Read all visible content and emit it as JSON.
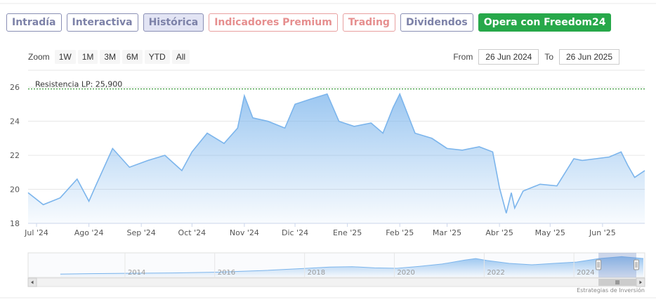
{
  "tabs": [
    {
      "label": "Intradía"
    },
    {
      "label": "Interactiva"
    },
    {
      "label": "Histórica"
    },
    {
      "label": "Indicadores Premium"
    },
    {
      "label": "Trading"
    },
    {
      "label": "Dividendos"
    },
    {
      "label": "Opera con Freedom24"
    }
  ],
  "zoom": {
    "label": "Zoom",
    "options": [
      "1W",
      "1M",
      "3M",
      "6M",
      "YTD",
      "All"
    ]
  },
  "range": {
    "from_label": "From",
    "from_value": "26 Jun 2024",
    "to_label": "To",
    "to_value": "26 Jun 2025"
  },
  "colors": {
    "line": "#7cb5ec",
    "resistance": "#3a9a3a",
    "cta": "#27a84a"
  },
  "credit": "Estrategias de Inversión",
  "chart_data": [
    {
      "type": "area",
      "annotation": "Resistencia LP: 25,900",
      "resistance": 25.9,
      "ylim": [
        18,
        27
      ],
      "y_ticks": [
        18,
        20,
        22,
        24,
        26
      ],
      "x_tick_labels": [
        "Jul '24",
        "Ago '24",
        "Sep '24",
        "Oct '24",
        "Nov '24",
        "Dic '24",
        "Ene '25",
        "Feb '25",
        "Mar '25",
        "Abr '25",
        "May '25",
        "Jun '25"
      ],
      "x_tick_dates": [
        "2024-07-01",
        "2024-08-01",
        "2024-09-01",
        "2024-10-01",
        "2024-11-01",
        "2024-12-01",
        "2025-01-01",
        "2025-02-01",
        "2025-03-01",
        "2025-04-01",
        "2025-05-01",
        "2025-06-01"
      ],
      "x_range": [
        "2024-06-26",
        "2025-06-26"
      ],
      "series": [
        {
          "x": [
            "2024-06-26",
            "2024-07-05",
            "2024-07-15",
            "2024-07-25",
            "2024-08-01",
            "2024-08-05",
            "2024-08-15",
            "2024-08-25",
            "2024-09-05",
            "2024-09-15",
            "2024-09-25",
            "2024-10-01",
            "2024-10-10",
            "2024-10-20",
            "2024-10-28",
            "2024-11-01",
            "2024-11-06",
            "2024-11-15",
            "2024-11-25",
            "2024-12-01",
            "2024-12-10",
            "2024-12-20",
            "2024-12-27",
            "2025-01-05",
            "2025-01-15",
            "2025-01-22",
            "2025-01-28",
            "2025-02-01",
            "2025-02-10",
            "2025-02-20",
            "2025-03-01",
            "2025-03-10",
            "2025-03-20",
            "2025-03-28",
            "2025-04-01",
            "2025-04-05",
            "2025-04-08",
            "2025-04-10",
            "2025-04-15",
            "2025-04-25",
            "2025-05-05",
            "2025-05-15",
            "2025-05-20",
            "2025-05-28",
            "2025-06-05",
            "2025-06-12",
            "2025-06-16",
            "2025-06-20",
            "2025-06-26"
          ],
          "values": [
            19.8,
            19.1,
            19.5,
            20.6,
            19.3,
            20.2,
            22.4,
            21.3,
            21.7,
            22.0,
            21.1,
            22.2,
            23.3,
            22.7,
            23.6,
            25.5,
            24.2,
            24.0,
            23.6,
            25.0,
            25.3,
            25.6,
            24.0,
            23.7,
            23.9,
            23.3,
            24.8,
            25.6,
            23.3,
            23.0,
            22.4,
            22.3,
            22.5,
            22.2,
            20.1,
            18.6,
            19.8,
            18.9,
            19.9,
            20.3,
            20.2,
            21.8,
            21.7,
            21.8,
            21.9,
            22.2,
            21.4,
            20.7,
            21.1
          ]
        }
      ]
    },
    {
      "type": "area",
      "role": "navigator",
      "x_tick_labels": [
        "2014",
        "2016",
        "2018",
        "2020",
        "2022",
        "2024"
      ],
      "series": [
        {
          "x": [
            "2012-07-01",
            "2013-01-01",
            "2014-01-01",
            "2015-01-01",
            "2016-01-01",
            "2016-07-01",
            "2017-01-01",
            "2017-07-01",
            "2018-01-01",
            "2018-07-01",
            "2019-01-01",
            "2019-07-01",
            "2020-01-01",
            "2020-07-01",
            "2021-01-01",
            "2021-07-01",
            "2021-10-01",
            "2022-01-01",
            "2022-07-01",
            "2023-01-01",
            "2023-07-01",
            "2024-01-01",
            "2024-07-01",
            "2025-01-01",
            "2025-06-26"
          ],
          "values": [
            1.0,
            1.2,
            1.4,
            1.6,
            2.0,
            2.4,
            2.8,
            3.4,
            4.0,
            4.6,
            4.8,
            4.2,
            4.0,
            5.0,
            6.2,
            8.2,
            9.0,
            8.0,
            6.5,
            5.8,
            6.5,
            7.2,
            9.0,
            10.0,
            9.0
          ]
        }
      ]
    }
  ]
}
